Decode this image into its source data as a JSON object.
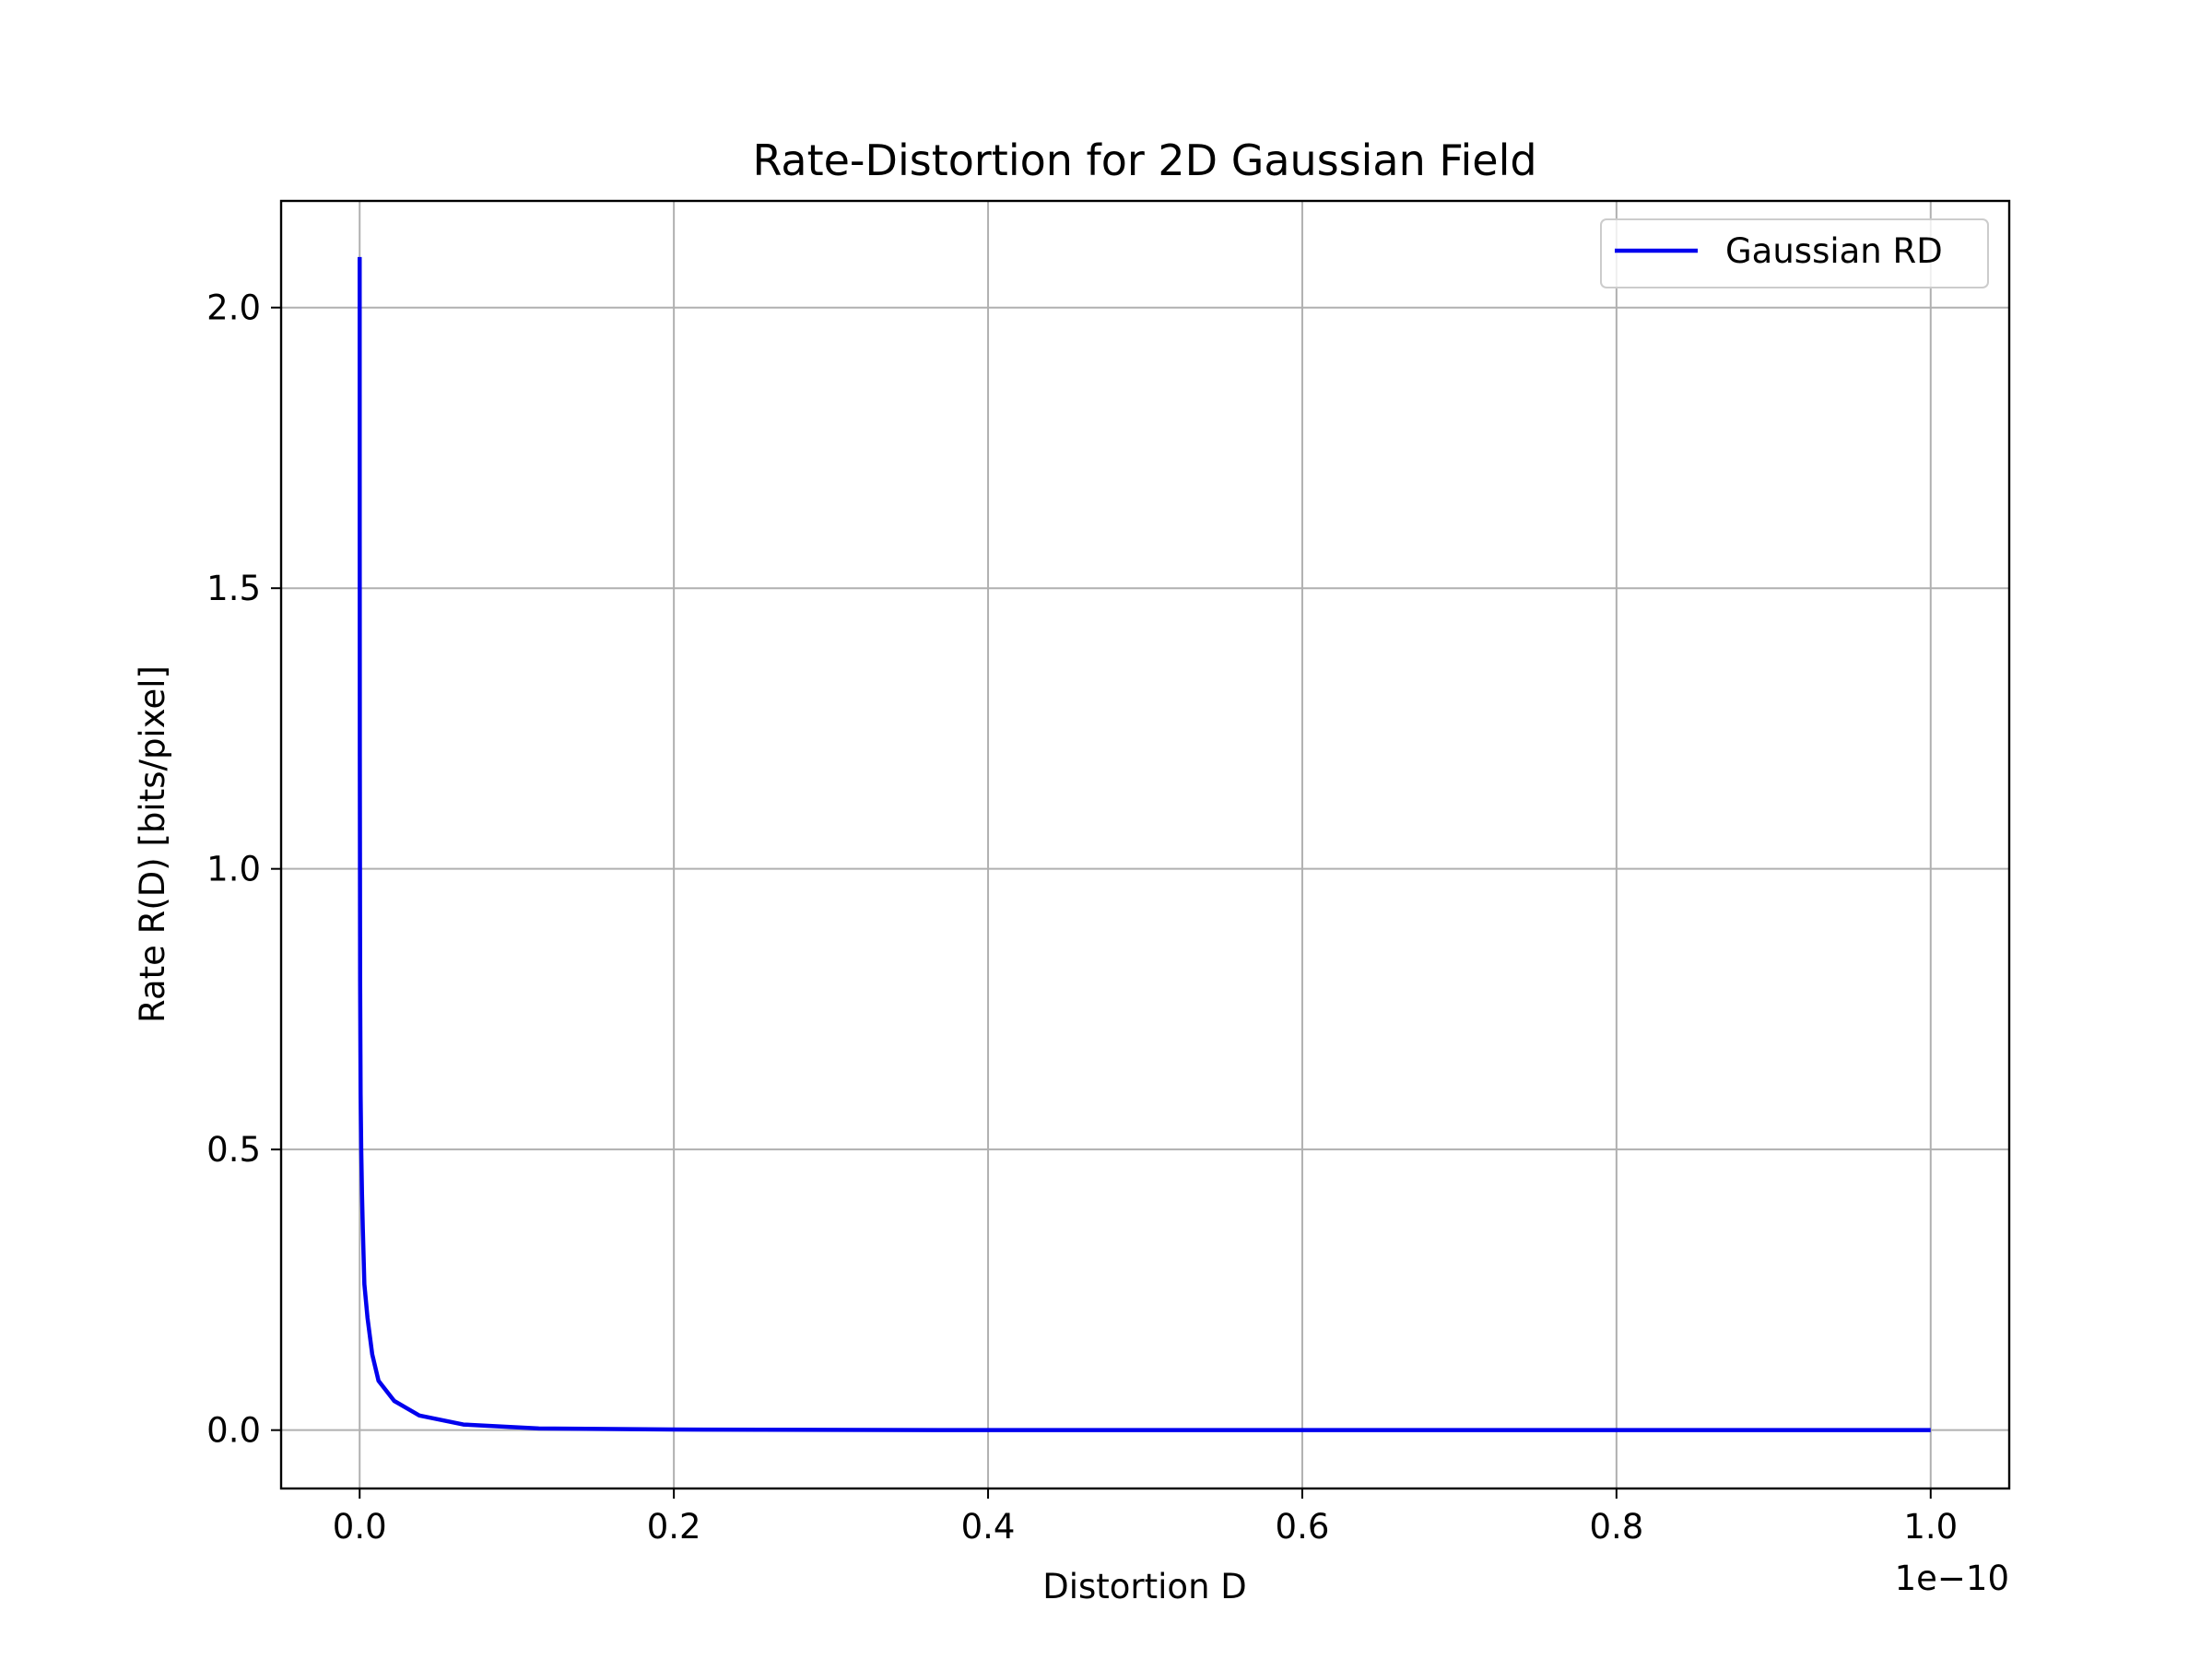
{
  "chart_data": {
    "type": "line",
    "title": "Rate-Distortion for 2D Gaussian Field",
    "xlabel": "Distortion D",
    "ylabel": "Rate R(D) [bits/pixel]",
    "x_offset_text": "1e−10",
    "x_scale": 1e-10,
    "xlim": [
      -5e-12,
      1.05e-10
    ],
    "ylim": [
      -0.104,
      2.19
    ],
    "x_ticks": [
      0,
      2e-11,
      4e-11,
      6e-11,
      8e-11,
      1e-10
    ],
    "x_tick_labels": [
      "0.0",
      "0.2",
      "0.4",
      "0.6",
      "0.8",
      "1.0"
    ],
    "y_ticks": [
      0,
      0.5,
      1.0,
      1.5,
      2.0
    ],
    "y_tick_labels": [
      "0.0",
      "0.5",
      "1.0",
      "1.5",
      "2.0"
    ],
    "grid": true,
    "legend_position": "top-right",
    "series": [
      {
        "name": "Gaussian RD",
        "color": "#0000ee",
        "x": [
          0.0,
          3e-15,
          1e-14,
          3e-14,
          6e-14,
          1e-13,
          1.5e-13,
          2e-13,
          3e-13,
          5e-13,
          8e-13,
          1.2e-12,
          2.2e-12,
          3.8e-12,
          6.6e-12,
          1.14e-11,
          2e-11,
          4e-11,
          6e-11,
          8e-11,
          1e-10
        ],
        "y": [
          2.09,
          1.6,
          1.2,
          0.8,
          0.6,
          0.5,
          0.42,
          0.36,
          0.26,
          0.2,
          0.135,
          0.088,
          0.052,
          0.026,
          0.01,
          0.003,
          0.001,
          0.0,
          0.0,
          0.0,
          0.0
        ]
      }
    ]
  }
}
